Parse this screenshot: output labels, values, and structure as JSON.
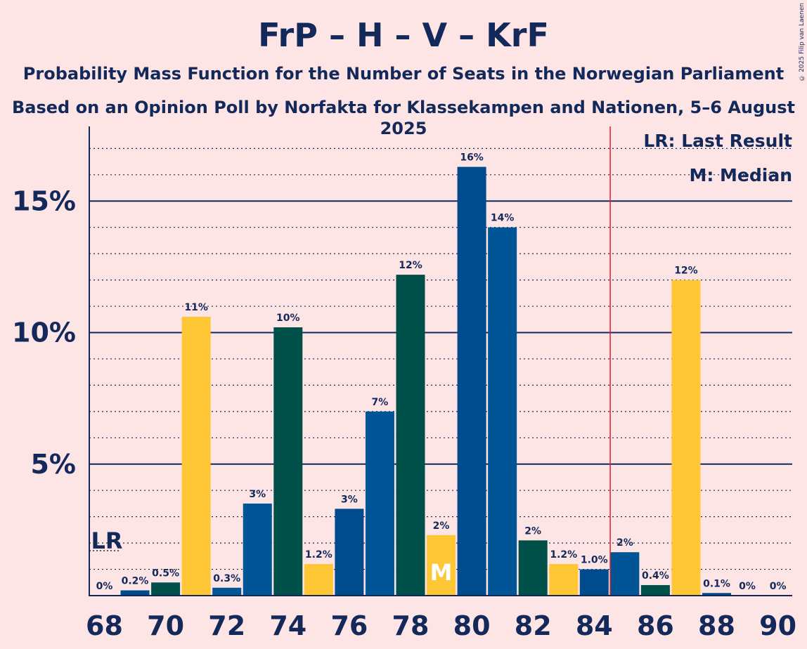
{
  "header": {
    "title": "FrP – H – V – KrF",
    "subtitle1": "Probability Mass Function for the Number of Seats in the Norwegian Parliament",
    "subtitle2": "Based on an Opinion Poll by Norfakta for Klassekampen and Nationen, 5–6 August 2025",
    "copyright": "© 2025 Filip van Laenen"
  },
  "legend": {
    "lr": "LR: Last Result",
    "median": "M: Median"
  },
  "markers": {
    "lr_label": "LR",
    "median_label": "M"
  },
  "colors": {
    "background": "#FDE4E5",
    "text": "#12295A",
    "frp": "#004B8E",
    "h": "#005596",
    "v": "#00504A",
    "krf": "#FFC635",
    "majority_line": "#E31E24"
  },
  "chart_data": {
    "type": "bar",
    "title": "FrP – H – V – KrF",
    "xlabel": "",
    "ylabel": "",
    "ylim": [
      0,
      17.8
    ],
    "y_ticks": [
      "5%",
      "10%",
      "15%"
    ],
    "y_tick_values": [
      5,
      10,
      15
    ],
    "minor_grid_step": 1,
    "x_ticks": [
      68,
      70,
      72,
      74,
      76,
      78,
      80,
      82,
      84,
      86,
      88,
      90
    ],
    "last_result_seat": 68,
    "median_seat": 79,
    "majority_line_after_seat": 84,
    "categories": [
      68,
      69,
      70,
      71,
      72,
      73,
      74,
      75,
      76,
      77,
      78,
      79,
      80,
      81,
      82,
      83,
      84,
      85,
      86,
      87,
      88,
      89,
      90
    ],
    "values": [
      0.0,
      0.2,
      0.5,
      10.6,
      0.3,
      3.5,
      10.2,
      1.2,
      3.3,
      7.0,
      12.2,
      2.3,
      16.3,
      14.0,
      2.1,
      1.2,
      1.0,
      1.65,
      0.4,
      12.0,
      0.1,
      0.0,
      0.0
    ],
    "labels": [
      "0%",
      "0.2%",
      "0.5%",
      "11%",
      "0.3%",
      "3%",
      "10%",
      "1.2%",
      "3%",
      "7%",
      "12%",
      "2%",
      "16%",
      "14%",
      "2%",
      "1.2%",
      "1.0%",
      "2%",
      "0.4%",
      "12%",
      "0.1%",
      "0%",
      "0%"
    ],
    "bar_colors": [
      "#FFC635",
      "#004B8E",
      "#00504A",
      "#FFC635",
      "#005596",
      "#005596",
      "#00504A",
      "#FFC635",
      "#004B8E",
      "#005596",
      "#00504A",
      "#FFC635",
      "#004B8E",
      "#005596",
      "#00504A",
      "#FFC635",
      "#004B8E",
      "#005596",
      "#00504A",
      "#FFC635",
      "#004B8E",
      "#005596",
      "#00504A"
    ]
  }
}
